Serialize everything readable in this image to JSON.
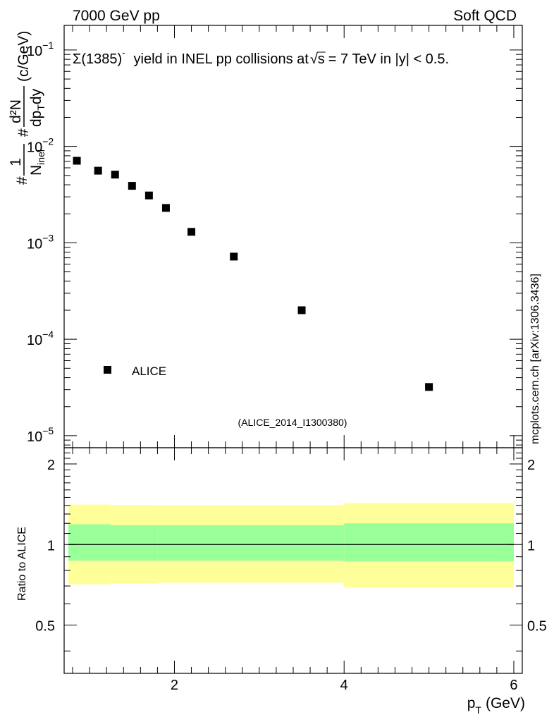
{
  "header": {
    "left": "7000 GeV pp",
    "right": "Soft QCD"
  },
  "side_label": "mcplots.cern.ch [arXiv:1306.3436]",
  "analysis_label": "(ALICE_2014_I1300380)",
  "colors": {
    "inner_band": "#99ff99",
    "outer_band": "#ffff99",
    "marker": "#000000",
    "analysis_label": "#999999",
    "side_label": "#888888"
  },
  "chart_data": [
    {
      "type": "scatter",
      "panel": "main",
      "title": "Σ(1385)⁻ yield in INEL pp collisions at √s = 7 TeV in |y| < 0.5.",
      "title_parts": {
        "particle": "Σ(1385)",
        "charge": "-",
        "text_a": "yield in INEL pp collisions at",
        "sqrt_s": "s",
        "text_b": "= 7 TeV in |y| < 0.5."
      },
      "ylabel": "#1/N_inel #d²N/dp_T dy (c/GeV)",
      "ylabel_parts": {
        "hash": "#",
        "one": "1",
        "n": "N",
        "inel": "inel",
        "d2n": "d²N",
        "dp": "dp",
        "t": "T",
        "dy": "dy",
        "unit": "(c/GeV)"
      },
      "yscale": "log",
      "xlim": [
        0.7,
        6.1
      ],
      "ylim": [
        7.5e-06,
        0.18
      ],
      "y_ticks": [
        {
          "value": 1e-05,
          "base": "10",
          "exp": "−5"
        },
        {
          "value": 0.0001,
          "base": "10",
          "exp": "−4"
        },
        {
          "value": 0.001,
          "base": "10",
          "exp": "−3"
        },
        {
          "value": 0.01,
          "base": "10",
          "exp": "−2"
        },
        {
          "value": 0.1,
          "base": "10",
          "exp": "−1"
        }
      ],
      "legend": {
        "position": "bottom-left",
        "label": "ALICE"
      },
      "series": [
        {
          "name": "ALICE",
          "x": [
            0.85,
            1.1,
            1.3,
            1.5,
            1.7,
            1.9,
            2.2,
            2.7,
            3.5,
            5.0
          ],
          "y": [
            0.0071,
            0.0056,
            0.0051,
            0.0039,
            0.0031,
            0.0023,
            0.0013,
            0.00072,
            0.0002,
            3.2e-05
          ]
        }
      ]
    },
    {
      "type": "area",
      "panel": "ratio",
      "ylabel": "Ratio to ALICE",
      "xlabel": "p_T (GeV)",
      "xlabel_parts": {
        "p": "p",
        "t": "T",
        "unit": "(GeV)"
      },
      "xlim": [
        0.7,
        6.1
      ],
      "ylim": [
        0.33,
        2.3
      ],
      "x_ticks": [
        "2",
        "4",
        "6"
      ],
      "y_ticks": [
        "0.5",
        "1",
        "2"
      ],
      "reference_line": 1.0,
      "bins": [
        {
          "lo": 0.75,
          "hi": 1.25,
          "inner": [
            0.87,
            1.19
          ],
          "outer": [
            0.71,
            1.41
          ]
        },
        {
          "lo": 1.25,
          "hi": 1.8,
          "inner": [
            0.87,
            1.18
          ],
          "outer": [
            0.715,
            1.405
          ]
        },
        {
          "lo": 1.8,
          "hi": 4.0,
          "inner": [
            0.87,
            1.18
          ],
          "outer": [
            0.72,
            1.4
          ]
        },
        {
          "lo": 4.0,
          "hi": 6.0,
          "inner": [
            0.865,
            1.2
          ],
          "outer": [
            0.69,
            1.43
          ]
        }
      ]
    }
  ]
}
